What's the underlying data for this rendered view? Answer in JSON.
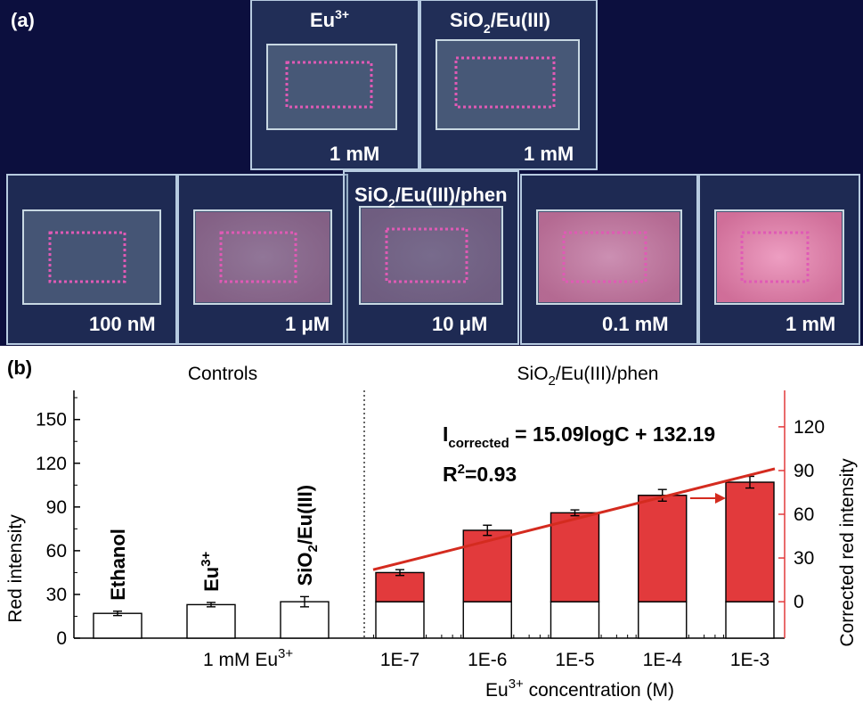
{
  "panel_a": {
    "label": "(a)",
    "top_row": [
      {
        "name_base": "Eu",
        "name_sup": "3+",
        "name_sub": "",
        "name_rest": "",
        "concentration": "1 mM"
      },
      {
        "name_base": "SiO",
        "name_sub": "2",
        "name_rest": "/Eu(III)",
        "name_sup": "",
        "concentration": "1 mM"
      }
    ],
    "bottom_title_base": "SiO",
    "bottom_title_sub": "2",
    "bottom_title_rest": "/Eu(III)/phen",
    "bottom_row": [
      {
        "concentration": "100 nM",
        "glow": 0.0
      },
      {
        "concentration": "1 μM",
        "glow": 0.45
      },
      {
        "concentration": "10 μM",
        "glow": 0.3
      },
      {
        "concentration": "0.1 mM",
        "glow": 0.8
      },
      {
        "concentration": "1 mM",
        "glow": 1.0
      }
    ],
    "colors": {
      "background": "#0c0f3e",
      "marker": "#e05ab5",
      "glow": "#f07aa8"
    }
  },
  "panel_b": {
    "label": "(b)",
    "controls_header": "Controls",
    "phen_header_base": "SiO",
    "phen_header_sub": "2",
    "phen_header_rest": "/Eu(III)/phen",
    "equation_base": "I",
    "equation_sub": "corrected",
    "equation_rest": " = 15.09logC + 132.19",
    "r2_base": "R",
    "r2_sup": "2",
    "r2_rest": "=0.93",
    "control_x_label_base": "1 mM Eu",
    "control_x_label_sup": "3+",
    "x_axis_title_base": "Eu",
    "x_axis_title_sup": "3+",
    "x_axis_title_rest": " concentration (M)"
  },
  "chart_data": {
    "type": "bar",
    "ylabel": "Red intensity",
    "y2label": "Corrected red intensity",
    "ylim": [
      0,
      170
    ],
    "yticks": [
      0,
      30,
      60,
      90,
      120,
      150
    ],
    "y2ticks": [
      0,
      30,
      60,
      90,
      120
    ],
    "y2_offset": 25,
    "controls": [
      {
        "label": "Ethanol",
        "label_sup": "",
        "value": 17,
        "error": 1.5
      },
      {
        "label": "Eu",
        "label_sup": "3+",
        "value": 23,
        "error": 1.5
      },
      {
        "label": "SiO2/Eu(III)",
        "label_sup": "",
        "value": 25,
        "error": 3.5
      }
    ],
    "series": {
      "categories": [
        "1E-7",
        "1E-6",
        "1E-5",
        "1E-4",
        "1E-3"
      ],
      "concentration_M": [
        1e-07,
        1e-06,
        1e-05,
        0.0001,
        0.001
      ],
      "values": [
        45,
        74,
        86,
        98,
        107
      ],
      "baseline": 25,
      "errors": [
        2,
        3.5,
        2,
        4,
        4
      ]
    },
    "fit": {
      "slope": 15.09,
      "intercept": 132.19,
      "x_range": [
        1e-07,
        0.001
      ]
    },
    "colors": {
      "bar": "#e23a3c",
      "fit": "#d42b1f",
      "right_axis": "#e23a3c"
    }
  }
}
